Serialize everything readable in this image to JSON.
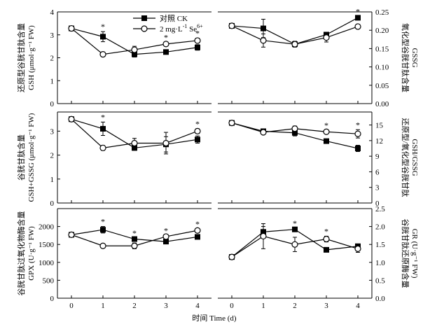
{
  "legend": {
    "ck_label": "对照 CK",
    "se_label_main": "2 mg·L",
    "se_label_exp1": "-1",
    "se_label_mid": " Se",
    "se_label_exp2": "6+"
  },
  "x_axis_title": "时间 Time (d)",
  "chart_data": [
    {
      "id": "gsh",
      "type": "line",
      "position": "top-left",
      "ylabel_cn": "还原型谷胱甘肽含量",
      "ylabel_en": "GSH (μmol·g⁻¹ FW)",
      "x": [
        0,
        1,
        2,
        3,
        4
      ],
      "xticks": [
        "0",
        "1",
        "2",
        "3",
        "4"
      ],
      "ylim": [
        0,
        4
      ],
      "yticks": [
        0,
        1,
        2,
        3,
        4
      ],
      "axis_side": "left",
      "series": [
        {
          "name": "CK",
          "marker": "filled-square",
          "values": [
            3.28,
            2.92,
            2.15,
            2.25,
            2.45
          ],
          "errors": [
            0.05,
            0.22,
            0.12,
            0.06,
            0.12
          ]
        },
        {
          "name": "Se",
          "marker": "open-circle",
          "values": [
            3.28,
            2.15,
            2.35,
            2.6,
            2.75
          ],
          "errors": [
            0.05,
            0.1,
            0.15,
            0.07,
            0.1
          ]
        }
      ],
      "significance": [
        "",
        "*",
        "",
        "*",
        "*"
      ]
    },
    {
      "id": "gssg",
      "type": "line",
      "position": "top-right",
      "ylabel_cn": "氧化型谷胱甘肽含量",
      "ylabel_en": "GSSG",
      "x": [
        0,
        1,
        2,
        3,
        4
      ],
      "xticks": [
        "0",
        "1",
        "2",
        "3",
        "4"
      ],
      "ylim": [
        0,
        0.25
      ],
      "yticks": [
        0,
        0.05,
        0.1,
        0.15,
        0.2,
        0.25
      ],
      "ytick_labels": [
        "0.00",
        "0.05",
        "0.10",
        "0.15",
        "0.20",
        "0.25"
      ],
      "axis_side": "right",
      "series": [
        {
          "name": "CK",
          "marker": "filled-square",
          "values": [
            0.212,
            0.205,
            0.162,
            0.188,
            0.234
          ],
          "errors": [
            0.004,
            0.025,
            0.006,
            0.006,
            0.004
          ]
        },
        {
          "name": "Se",
          "marker": "open-circle",
          "values": [
            0.212,
            0.172,
            0.162,
            0.18,
            0.21
          ],
          "errors": [
            0.004,
            0.018,
            0.008,
            0.012,
            0.006
          ]
        }
      ],
      "significance": [
        "",
        "",
        "",
        "",
        "*"
      ]
    },
    {
      "id": "total",
      "type": "line",
      "position": "middle-left",
      "ylabel_cn": "谷胱甘肽含量",
      "ylabel_en": "GSH+GSSG (μmol·g⁻¹ FW)",
      "x": [
        0,
        1,
        2,
        3,
        4
      ],
      "xticks": [
        "0",
        "1",
        "2",
        "3",
        "4"
      ],
      "ylim": [
        0,
        3.8
      ],
      "yticks": [
        0,
        1,
        2,
        3
      ],
      "axis_side": "left",
      "series": [
        {
          "name": "CK",
          "marker": "filled-square",
          "values": [
            3.5,
            3.1,
            2.3,
            2.45,
            2.65
          ],
          "errors": [
            0.05,
            0.28,
            0.1,
            0.32,
            0.15
          ]
        },
        {
          "name": "Se",
          "marker": "open-circle",
          "values": [
            3.5,
            2.3,
            2.5,
            2.5,
            3.0
          ],
          "errors": [
            0.05,
            0.1,
            0.2,
            0.45,
            0.1
          ]
        }
      ],
      "significance": [
        "",
        "*",
        "",
        "",
        "*"
      ]
    },
    {
      "id": "ratio",
      "type": "line",
      "position": "middle-right",
      "ylabel_cn": "还原型/氧化型谷胱甘肽",
      "ylabel_en": "GSH/GSSG",
      "x": [
        0,
        1,
        2,
        3,
        4
      ],
      "xticks": [
        "0",
        "1",
        "2",
        "3",
        "4"
      ],
      "ylim": [
        0,
        17.5
      ],
      "yticks": [
        0,
        3,
        6,
        9,
        12,
        15
      ],
      "axis_side": "right",
      "series": [
        {
          "name": "CK",
          "marker": "filled-square",
          "values": [
            15.4,
            13.8,
            13.5,
            11.9,
            10.5
          ],
          "errors": [
            0.2,
            0.3,
            0.6,
            0.2,
            0.6
          ]
        },
        {
          "name": "Se",
          "marker": "open-circle",
          "values": [
            15.4,
            13.6,
            14.3,
            13.7,
            13.3
          ],
          "errors": [
            0.2,
            0.3,
            0.5,
            0.3,
            0.8
          ]
        }
      ],
      "significance": [
        "",
        "",
        "",
        "*",
        "*"
      ]
    },
    {
      "id": "gpx",
      "type": "line",
      "position": "bottom-left",
      "ylabel_cn": "谷胱甘肽过氧化物酶含量",
      "ylabel_en": "GPX (U·g⁻¹ FW)",
      "x": [
        0,
        1,
        2,
        3,
        4
      ],
      "xticks": [
        "0",
        "1",
        "2",
        "3",
        "4"
      ],
      "ylim": [
        0,
        2500
      ],
      "yticks": [
        0,
        500,
        1000,
        1500,
        2000
      ],
      "axis_side": "left",
      "series": [
        {
          "name": "CK",
          "marker": "filled-square",
          "values": [
            1770,
            1910,
            1650,
            1580,
            1710
          ],
          "errors": [
            30,
            90,
            30,
            30,
            30
          ]
        },
        {
          "name": "Se",
          "marker": "open-circle",
          "values": [
            1770,
            1460,
            1460,
            1720,
            1890
          ],
          "errors": [
            30,
            50,
            80,
            30,
            40
          ]
        }
      ],
      "significance": [
        "",
        "*",
        "*",
        "*",
        "*"
      ]
    },
    {
      "id": "gr",
      "type": "line",
      "position": "bottom-right",
      "ylabel_cn": "谷胱甘肽还原酶含量",
      "ylabel_en": "GR (U·g⁻¹ FW)",
      "x": [
        0,
        1,
        2,
        3,
        4
      ],
      "xticks": [
        "0",
        "1",
        "2",
        "3",
        "4"
      ],
      "ylim": [
        0,
        2.5
      ],
      "yticks": [
        0,
        0.5,
        1.0,
        1.5,
        2.0,
        2.5
      ],
      "ytick_labels": [
        "0.0",
        "0.5",
        "1.0",
        "1.5",
        "2.0",
        "2.5"
      ],
      "axis_side": "right",
      "series": [
        {
          "name": "CK",
          "marker": "filled-square",
          "values": [
            1.15,
            1.85,
            1.92,
            1.35,
            1.45
          ],
          "errors": [
            0.02,
            0.15,
            0.03,
            0.03,
            0.05
          ]
        },
        {
          "name": "Se",
          "marker": "open-circle",
          "values": [
            1.15,
            1.73,
            1.5,
            1.65,
            1.38
          ],
          "errors": [
            0.02,
            0.35,
            0.2,
            0.08,
            0.1
          ]
        }
      ],
      "significance": [
        "",
        "",
        "*",
        "*",
        ""
      ]
    }
  ]
}
